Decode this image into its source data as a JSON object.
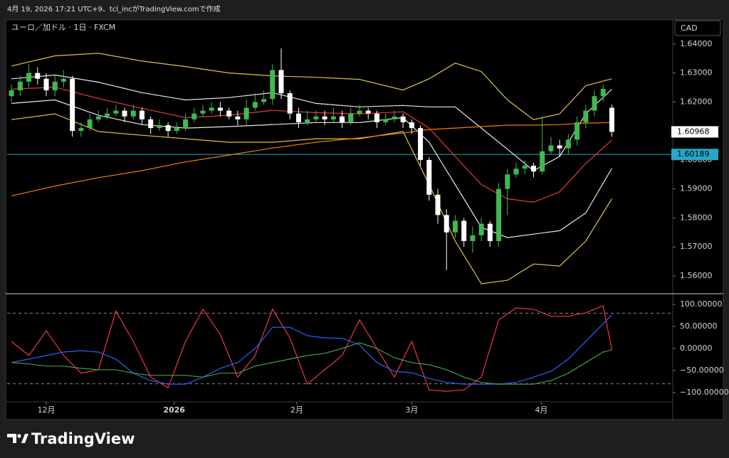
{
  "header": "4月 19, 2026 17:21 UTC+9、tcl_incがTradingView.comで作成",
  "footer": "TradingView",
  "chart_data": [
    {
      "type": "candlestick",
      "title": "ユーロ／加ドル · 1日 · FXCM",
      "currency": "CAD",
      "xlim": [
        -0.5,
        76
      ],
      "ylim": [
        1.5541,
        1.6483
      ],
      "yticks": [
        {
          "value": 1.64,
          "label": "1.64000"
        },
        {
          "value": 1.63,
          "label": "1.63000"
        },
        {
          "value": 1.62,
          "label": "1.62000"
        },
        {
          "value": 1.61,
          "label": "1.61000"
        },
        {
          "value": 1.6,
          "label": "1.60000"
        },
        {
          "value": 1.59,
          "label": "1.59000"
        },
        {
          "value": 1.58,
          "label": "1.58000"
        },
        {
          "value": 1.57,
          "label": "1.57000"
        },
        {
          "value": 1.56,
          "label": "1.56000"
        }
      ],
      "hline": 1.60189,
      "hline_color": "#26a6c8",
      "candles": {
        "up_color": "#3fb950",
        "down_color": "#ffffff",
        "open": [
          1.622,
          1.624,
          1.627,
          1.63,
          1.628,
          1.624,
          1.627,
          1.628,
          1.61,
          1.611,
          1.614,
          1.615,
          1.616,
          1.617,
          1.615,
          1.617,
          1.614,
          1.611,
          1.612,
          1.61,
          1.611,
          1.614,
          1.616,
          1.617,
          1.618,
          1.617,
          1.615,
          1.614,
          1.618,
          1.62,
          1.621,
          1.631,
          1.623,
          1.616,
          1.613,
          1.614,
          1.615,
          1.614,
          1.615,
          1.613,
          1.616,
          1.617,
          1.616,
          1.613,
          1.614,
          1.615,
          1.613,
          1.611,
          1.6,
          1.588,
          1.581,
          1.575,
          1.579,
          1.572,
          1.574,
          1.578,
          1.572,
          1.59,
          1.595,
          1.597,
          1.598,
          1.596,
          1.603,
          1.605,
          1.604,
          1.607,
          1.613,
          1.617,
          1.622,
          1.618
        ],
        "high": [
          1.626,
          1.629,
          1.633,
          1.632,
          1.63,
          1.629,
          1.631,
          1.629,
          1.613,
          1.616,
          1.617,
          1.618,
          1.619,
          1.618,
          1.619,
          1.618,
          1.615,
          1.614,
          1.613,
          1.613,
          1.616,
          1.618,
          1.619,
          1.62,
          1.62,
          1.618,
          1.617,
          1.621,
          1.623,
          1.624,
          1.633,
          1.6385,
          1.624,
          1.618,
          1.617,
          1.617,
          1.617,
          1.618,
          1.617,
          1.618,
          1.619,
          1.618,
          1.617,
          1.616,
          1.617,
          1.616,
          1.614,
          1.612,
          1.601,
          1.59,
          1.583,
          1.581,
          1.58,
          1.577,
          1.58,
          1.579,
          1.592,
          1.597,
          1.599,
          1.6,
          1.599,
          1.615,
          1.608,
          1.607,
          1.609,
          1.615,
          1.619,
          1.624,
          1.626,
          1.619
        ],
        "low": [
          1.62,
          1.622,
          1.625,
          1.626,
          1.622,
          1.622,
          1.625,
          1.608,
          1.608,
          1.61,
          1.613,
          1.614,
          1.615,
          1.613,
          1.614,
          1.612,
          1.609,
          1.61,
          1.608,
          1.609,
          1.61,
          1.613,
          1.615,
          1.616,
          1.615,
          1.614,
          1.612,
          1.612,
          1.617,
          1.619,
          1.619,
          1.621,
          1.614,
          1.611,
          1.612,
          1.613,
          1.612,
          1.613,
          1.611,
          1.612,
          1.615,
          1.614,
          1.611,
          1.612,
          1.613,
          1.611,
          1.609,
          1.598,
          1.586,
          1.578,
          1.562,
          1.573,
          1.57,
          1.568,
          1.572,
          1.57,
          1.57,
          1.581,
          1.594,
          1.595,
          1.594,
          1.595,
          1.602,
          1.601,
          1.602,
          1.605,
          1.611,
          1.615,
          1.62,
          1.608
        ],
        "close": [
          1.624,
          1.627,
          1.63,
          1.628,
          1.624,
          1.627,
          1.628,
          1.61,
          1.611,
          1.614,
          1.615,
          1.616,
          1.617,
          1.615,
          1.617,
          1.614,
          1.611,
          1.612,
          1.61,
          1.611,
          1.614,
          1.616,
          1.617,
          1.618,
          1.617,
          1.615,
          1.614,
          1.618,
          1.62,
          1.621,
          1.631,
          1.623,
          1.616,
          1.613,
          1.614,
          1.615,
          1.614,
          1.615,
          1.613,
          1.616,
          1.617,
          1.616,
          1.613,
          1.614,
          1.615,
          1.613,
          1.611,
          1.6,
          1.588,
          1.581,
          1.575,
          1.579,
          1.572,
          1.574,
          1.578,
          1.572,
          1.59,
          1.595,
          1.597,
          1.598,
          1.596,
          1.603,
          1.605,
          1.604,
          1.607,
          1.613,
          1.617,
          1.622,
          1.6245,
          1.60968
        ]
      },
      "series": [
        {
          "color": "#e0c341",
          "x": [
            0,
            5,
            10,
            15,
            20,
            25,
            30,
            35,
            40,
            45,
            48,
            51,
            54,
            57,
            60,
            63,
            66,
            69
          ],
          "values": [
            1.6324,
            1.6359,
            1.6368,
            1.6341,
            1.6322,
            1.63,
            1.629,
            1.6285,
            1.6278,
            1.6241,
            1.628,
            1.6334,
            1.6305,
            1.6207,
            1.6139,
            1.6159,
            1.6256,
            1.628
          ]
        },
        {
          "color": "#e0c341",
          "x": [
            0,
            5,
            10,
            15,
            20,
            25,
            30,
            35,
            40,
            45,
            48,
            51,
            54,
            57,
            60,
            63,
            66,
            69
          ],
          "values": [
            1.6139,
            1.6159,
            1.6098,
            1.6085,
            1.6073,
            1.6061,
            1.6061,
            1.6073,
            1.6073,
            1.6098,
            1.5915,
            1.572,
            1.5573,
            1.5585,
            1.5641,
            1.5634,
            1.572,
            1.5866
          ]
        },
        {
          "color": "#e8e8e8",
          "x": [
            0,
            5,
            10,
            15,
            20,
            25,
            30,
            35,
            40,
            45,
            48,
            51,
            54,
            57,
            60,
            63,
            66,
            69
          ],
          "values": [
            1.628,
            1.6293,
            1.6268,
            1.6232,
            1.6207,
            1.6215,
            1.6232,
            1.6195,
            1.6183,
            1.6188,
            1.6183,
            1.6183,
            1.611,
            1.6037,
            1.5963,
            1.6012,
            1.6159,
            1.6244
          ]
        },
        {
          "color": "#e8e8e8",
          "x": [
            0,
            5,
            10,
            15,
            20,
            25,
            30,
            35,
            40,
            45,
            48,
            51,
            54,
            57,
            60,
            63,
            66,
            69
          ],
          "values": [
            1.6195,
            1.6207,
            1.6154,
            1.6122,
            1.611,
            1.6115,
            1.6122,
            1.6129,
            1.6129,
            1.6146,
            1.6061,
            1.5915,
            1.5768,
            1.5732,
            1.5744,
            1.5756,
            1.5817,
            1.5971
          ]
        },
        {
          "color": "#e53935",
          "x": [
            0,
            5,
            10,
            15,
            20,
            25,
            30,
            35,
            40,
            45,
            48,
            51,
            54,
            57,
            60,
            63,
            66,
            69
          ],
          "values": [
            1.6244,
            1.6251,
            1.6212,
            1.6178,
            1.6146,
            1.6154,
            1.6171,
            1.6163,
            1.6159,
            1.6166,
            1.611,
            1.6012,
            1.5915,
            1.5866,
            1.5854,
            1.589,
            1.5988,
            1.6068
          ]
        },
        {
          "color": "#f57c00",
          "x": [
            0,
            5,
            10,
            15,
            20,
            25,
            30,
            35,
            40,
            45,
            48,
            51,
            54,
            57,
            60,
            63,
            66,
            69
          ],
          "values": [
            1.5876,
            1.591,
            1.5939,
            1.5963,
            1.5993,
            1.6017,
            1.6041,
            1.6061,
            1.6076,
            1.6093,
            1.6105,
            1.611,
            1.6115,
            1.612,
            1.612,
            1.6122,
            1.6127,
            1.6129
          ]
        }
      ]
    },
    {
      "type": "line",
      "xlim": [
        -0.5,
        76
      ],
      "ylim": [
        -121,
        121
      ],
      "yticks": [
        {
          "value": 100,
          "label": "100.00000"
        },
        {
          "value": 50,
          "label": "50.00000"
        },
        {
          "value": 0,
          "label": "0.00000"
        },
        {
          "value": -50,
          "label": "−50.00000"
        },
        {
          "value": -100,
          "label": "−100.00000"
        }
      ],
      "levels": [
        80,
        -80
      ],
      "xticks": [
        {
          "value": 4,
          "label": "12月"
        },
        {
          "value": 18.7,
          "label": "2026"
        },
        {
          "value": 32.8,
          "label": "2月"
        },
        {
          "value": 46,
          "label": "3月"
        },
        {
          "value": 60.9,
          "label": "4月"
        }
      ],
      "series": [
        {
          "color": "#f23645",
          "x": [
            0,
            2,
            4,
            6,
            8,
            10,
            12,
            14,
            16,
            18,
            20,
            22,
            24,
            26,
            28,
            30,
            32,
            34,
            36,
            38,
            40,
            42,
            44,
            46,
            48,
            50,
            52,
            54,
            56,
            58,
            60,
            62,
            64,
            66,
            68,
            69
          ],
          "values": [
            16,
            -16,
            40,
            -16,
            -56,
            -48,
            85,
            16,
            -65,
            -89,
            16,
            89,
            32,
            -65,
            -16,
            89,
            24,
            -81,
            -48,
            -16,
            65,
            0,
            -65,
            16,
            -94,
            -97,
            -94,
            -65,
            65,
            92,
            89,
            73,
            73,
            81,
            97,
            -3
          ]
        },
        {
          "color": "#2962ff",
          "x": [
            0,
            2,
            4,
            6,
            8,
            10,
            12,
            14,
            16,
            18,
            20,
            22,
            24,
            26,
            28,
            30,
            32,
            34,
            36,
            38,
            40,
            42,
            44,
            46,
            48,
            50,
            52,
            54,
            56,
            58,
            60,
            62,
            64,
            66,
            68,
            69
          ],
          "values": [
            -32,
            -24,
            -16,
            -8,
            -5,
            -8,
            -24,
            -56,
            -73,
            -81,
            -81,
            -65,
            -45,
            -32,
            0,
            48,
            48,
            29,
            24,
            23,
            8,
            -32,
            -52,
            -55,
            -68,
            -77,
            -81,
            -81,
            -81,
            -77,
            -65,
            -52,
            -24,
            16,
            56,
            76
          ]
        },
        {
          "color": "#43a047",
          "x": [
            0,
            2,
            4,
            6,
            8,
            10,
            12,
            14,
            16,
            18,
            20,
            22,
            24,
            26,
            28,
            30,
            32,
            34,
            36,
            38,
            40,
            42,
            44,
            46,
            48,
            50,
            52,
            54,
            56,
            58,
            60,
            62,
            64,
            66,
            68,
            69
          ],
          "values": [
            -32,
            -35,
            -40,
            -40,
            -45,
            -48,
            -48,
            -56,
            -61,
            -61,
            -61,
            -65,
            -56,
            -56,
            -40,
            -32,
            -24,
            -16,
            -11,
            0,
            13,
            0,
            -21,
            -32,
            -37,
            -48,
            -65,
            -77,
            -81,
            -81,
            -81,
            -73,
            -56,
            -32,
            -8,
            -3
          ]
        }
      ]
    }
  ]
}
